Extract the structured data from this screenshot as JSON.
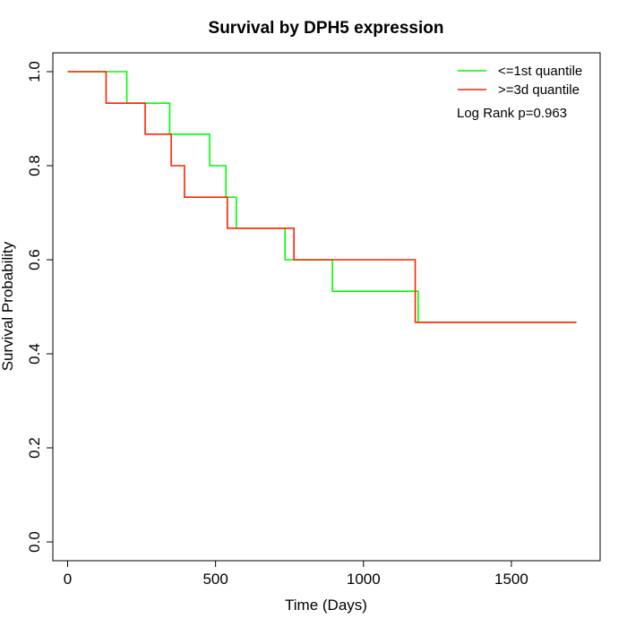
{
  "chart_data": {
    "type": "line",
    "subtype": "kaplan-meier-step",
    "title": "Survival by DPH5 expression",
    "xlabel": "Time (Days)",
    "ylabel": "Survival Probability",
    "xlim": [
      -50,
      1800
    ],
    "ylim": [
      -0.04,
      1.04
    ],
    "x_ticks": [
      0,
      500,
      1000,
      1500
    ],
    "y_ticks": [
      0.0,
      0.2,
      0.4,
      0.6,
      0.8,
      1.0
    ],
    "x_tick_labels": [
      "0",
      "500",
      "1000",
      "1500"
    ],
    "y_tick_labels": [
      "0.0",
      "0.2",
      "0.4",
      "0.6",
      "0.8",
      "1.0"
    ],
    "grid": false,
    "legend_position": "top-right",
    "annotation": "Log Rank p=0.963",
    "series": [
      {
        "name": "<=1st quantile",
        "color": "#00ff00",
        "x": [
          0,
          200,
          345,
          480,
          535,
          570,
          735,
          895,
          1185,
          1720
        ],
        "y": [
          1.0,
          0.933,
          0.867,
          0.8,
          0.733,
          0.667,
          0.6,
          0.533,
          0.467,
          0.467
        ]
      },
      {
        "name": ">=3d quantile",
        "color": "#ff2200",
        "x": [
          0,
          130,
          262,
          350,
          395,
          540,
          765,
          1175,
          1720
        ],
        "y": [
          1.0,
          0.933,
          0.867,
          0.8,
          0.733,
          0.667,
          0.6,
          0.467,
          0.467
        ]
      }
    ]
  }
}
